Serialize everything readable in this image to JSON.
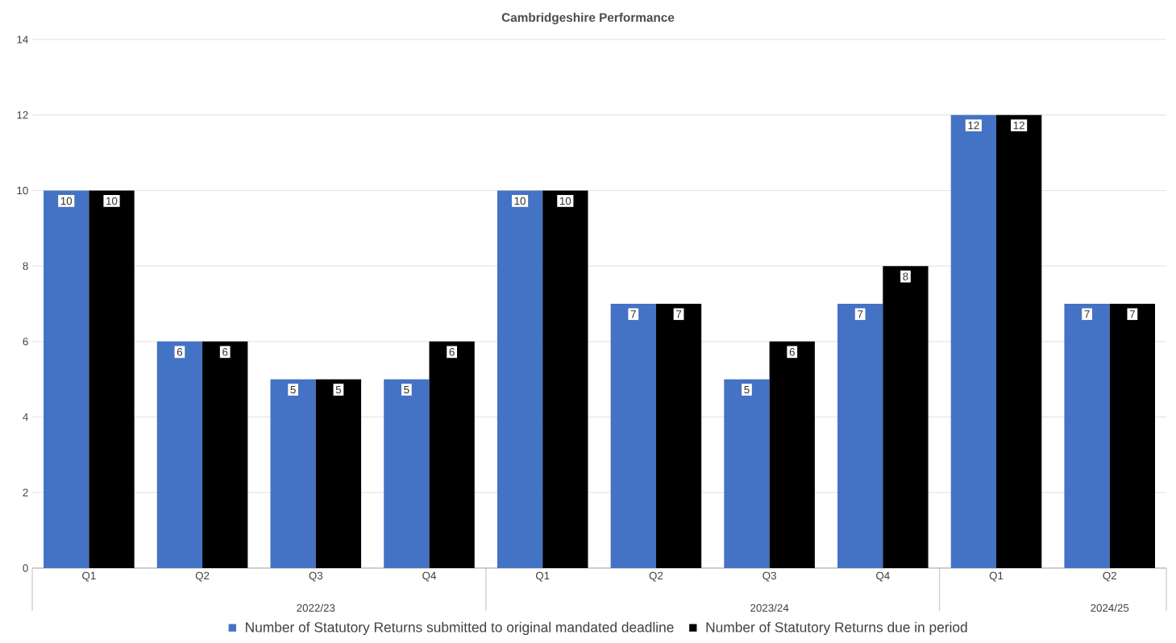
{
  "chart_data": {
    "type": "bar",
    "title": "Cambridgeshire Performance",
    "categories": [
      "Q1",
      "Q2",
      "Q3",
      "Q4",
      "Q1",
      "Q2",
      "Q3",
      "Q4",
      "Q1",
      "Q2"
    ],
    "series": [
      {
        "name": "Number of Statutory Returns submitted to original mandated deadline",
        "color": "#4472c4",
        "values": [
          10,
          6,
          5,
          5,
          10,
          7,
          5,
          7,
          12,
          7
        ]
      },
      {
        "name": "Number of Statutory Returns due in period",
        "color": "#000000",
        "values": [
          10,
          6,
          5,
          6,
          10,
          7,
          6,
          8,
          12,
          7
        ]
      }
    ],
    "annotations": [
      "2022/23",
      "2023/24",
      "2024/25"
    ],
    "ylim": [
      0,
      14
    ],
    "yticks": [
      0,
      2,
      4,
      6,
      8,
      10,
      12,
      14
    ],
    "grid": "y",
    "legend": "bottom",
    "data_labels": true
  }
}
